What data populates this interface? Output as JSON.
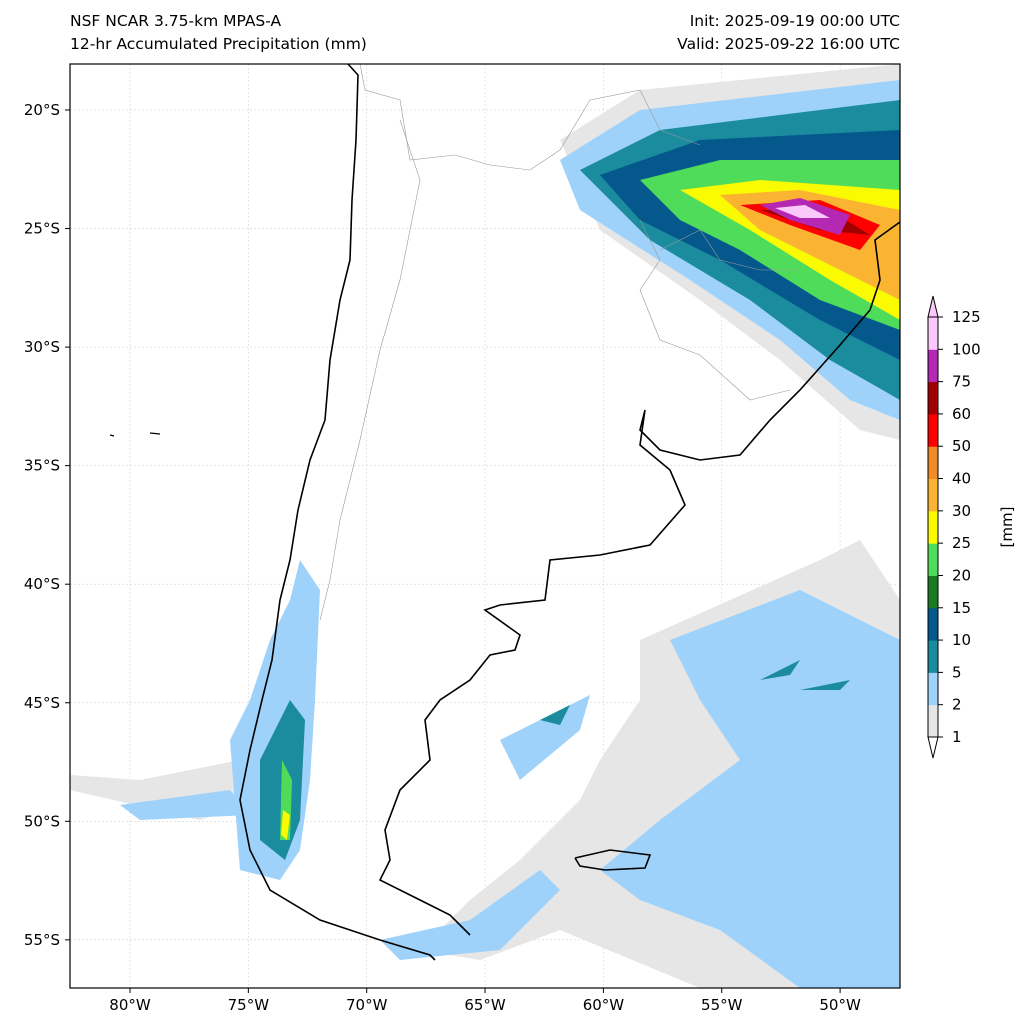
{
  "title": {
    "model": "NSF NCAR 3.75-km MPAS-A",
    "field": "12-hr Accumulated Precipitation (mm)",
    "init": "Init: 2025-09-19 00:00 UTC",
    "valid": "Valid: 2025-09-22 16:00 UTC"
  },
  "axes": {
    "lon_ticks": [
      {
        "value": -80,
        "label": "80°W"
      },
      {
        "value": -75,
        "label": "75°W"
      },
      {
        "value": -70,
        "label": "70°W"
      },
      {
        "value": -65,
        "label": "65°W"
      },
      {
        "value": -60,
        "label": "60°W"
      },
      {
        "value": -55,
        "label": "55°W"
      },
      {
        "value": -50,
        "label": "50°W"
      }
    ],
    "lat_ticks": [
      {
        "value": -20,
        "label": "20°S"
      },
      {
        "value": -25,
        "label": "25°S"
      },
      {
        "value": -30,
        "label": "30°S"
      },
      {
        "value": -35,
        "label": "35°S"
      },
      {
        "value": -40,
        "label": "40°S"
      },
      {
        "value": -45,
        "label": "45°S"
      },
      {
        "value": -50,
        "label": "50°S"
      },
      {
        "value": -55,
        "label": "55°S"
      }
    ],
    "lon_range": [
      -82.5,
      -47.5
    ],
    "lat_range": [
      -57,
      -18
    ]
  },
  "colorbar": {
    "label": "[mm]",
    "levels": [
      "1",
      "2",
      "5",
      "10",
      "15",
      "20",
      "25",
      "30",
      "40",
      "50",
      "60",
      "75",
      "100",
      "125"
    ],
    "colors": [
      "#e6e6e6",
      "#9ed2fa",
      "#1a8c9e",
      "#04588c",
      "#1a7a1f",
      "#4fdc5a",
      "#fafa00",
      "#fab432",
      "#f08c28",
      "#ff0000",
      "#a00000",
      "#b428b4",
      "#fac8fa"
    ]
  }
}
